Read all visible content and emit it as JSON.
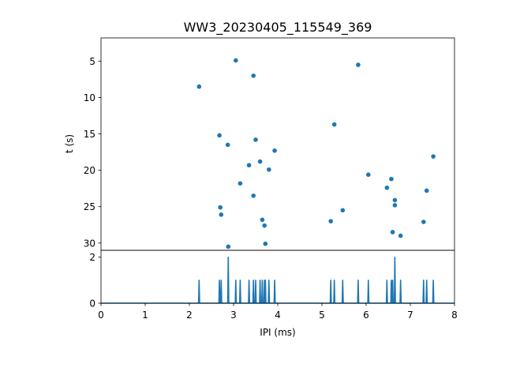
{
  "chart_data": [
    {
      "type": "scatter",
      "title": "WW3_20230405_115549_369",
      "ylabel": "t (s)",
      "xlim": [
        0,
        8
      ],
      "ylim": [
        31,
        1.8
      ],
      "y_inverted": true,
      "yticks": [
        5,
        10,
        15,
        20,
        25,
        30
      ],
      "color": "#1f77b4",
      "points": [
        {
          "x": 2.22,
          "y": 8.5
        },
        {
          "x": 2.68,
          "y": 15.2
        },
        {
          "x": 2.7,
          "y": 25.1
        },
        {
          "x": 2.72,
          "y": 26.1
        },
        {
          "x": 2.87,
          "y": 16.5
        },
        {
          "x": 2.88,
          "y": 30.5
        },
        {
          "x": 3.05,
          "y": 4.9
        },
        {
          "x": 3.15,
          "y": 21.8
        },
        {
          "x": 3.35,
          "y": 19.3
        },
        {
          "x": 3.45,
          "y": 7.0
        },
        {
          "x": 3.45,
          "y": 23.5
        },
        {
          "x": 3.5,
          "y": 15.8
        },
        {
          "x": 3.6,
          "y": 18.8
        },
        {
          "x": 3.65,
          "y": 26.8
        },
        {
          "x": 3.7,
          "y": 27.6
        },
        {
          "x": 3.72,
          "y": 30.1
        },
        {
          "x": 3.8,
          "y": 19.9
        },
        {
          "x": 3.93,
          "y": 17.3
        },
        {
          "x": 5.2,
          "y": 27.0
        },
        {
          "x": 5.28,
          "y": 13.7
        },
        {
          "x": 5.47,
          "y": 25.5
        },
        {
          "x": 5.82,
          "y": 5.5
        },
        {
          "x": 6.05,
          "y": 20.6
        },
        {
          "x": 6.47,
          "y": 22.4
        },
        {
          "x": 6.57,
          "y": 21.2
        },
        {
          "x": 6.6,
          "y": 28.5
        },
        {
          "x": 6.65,
          "y": 24.1
        },
        {
          "x": 6.65,
          "y": 24.8
        },
        {
          "x": 6.78,
          "y": 29.0
        },
        {
          "x": 7.3,
          "y": 27.1
        },
        {
          "x": 7.37,
          "y": 22.8
        },
        {
          "x": 7.52,
          "y": 18.1
        }
      ]
    },
    {
      "type": "line",
      "xlabel": "IPI (ms)",
      "xlim": [
        0,
        8
      ],
      "ylim": [
        0,
        2.3
      ],
      "xticks": [
        0,
        1,
        2,
        3,
        4,
        5,
        6,
        7,
        8
      ],
      "yticks": [
        0,
        2
      ],
      "color": "#1f77b4",
      "spikes": [
        {
          "x": 2.22,
          "count": 1
        },
        {
          "x": 2.68,
          "count": 1
        },
        {
          "x": 2.72,
          "count": 1
        },
        {
          "x": 2.88,
          "count": 2
        },
        {
          "x": 3.05,
          "count": 1
        },
        {
          "x": 3.15,
          "count": 1
        },
        {
          "x": 3.35,
          "count": 1
        },
        {
          "x": 3.45,
          "count": 1
        },
        {
          "x": 3.5,
          "count": 1
        },
        {
          "x": 3.6,
          "count": 1
        },
        {
          "x": 3.65,
          "count": 1
        },
        {
          "x": 3.7,
          "count": 1
        },
        {
          "x": 3.72,
          "count": 1
        },
        {
          "x": 3.8,
          "count": 1
        },
        {
          "x": 3.93,
          "count": 1
        },
        {
          "x": 5.2,
          "count": 1
        },
        {
          "x": 5.28,
          "count": 1
        },
        {
          "x": 5.47,
          "count": 1
        },
        {
          "x": 5.82,
          "count": 1
        },
        {
          "x": 6.05,
          "count": 1
        },
        {
          "x": 6.47,
          "count": 1
        },
        {
          "x": 6.57,
          "count": 1
        },
        {
          "x": 6.6,
          "count": 1
        },
        {
          "x": 6.65,
          "count": 2
        },
        {
          "x": 6.78,
          "count": 1
        },
        {
          "x": 7.3,
          "count": 1
        },
        {
          "x": 7.37,
          "count": 1
        },
        {
          "x": 7.52,
          "count": 1
        }
      ]
    }
  ]
}
